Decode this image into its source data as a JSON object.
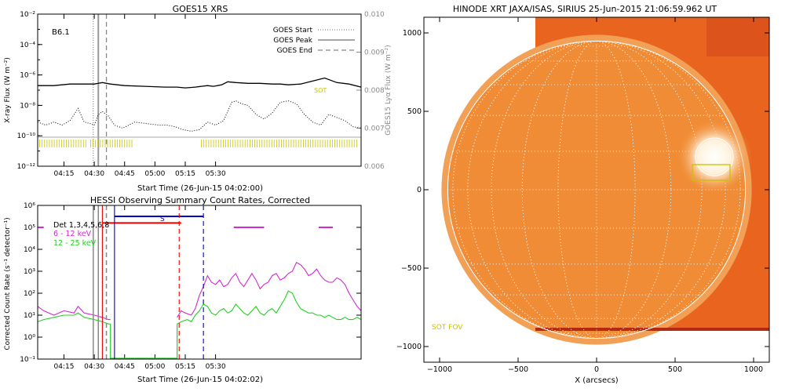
{
  "chart_data": [
    {
      "id": "goes",
      "type": "line",
      "title": "GOES15 XRS",
      "xlabel": "Start Time (26-Jun-15 04:02:00)",
      "ylabel": "X-ray Flux (W m⁻²)",
      "y2label": "GOES15 Lyα Flux (W m⁻²)",
      "xlim_min": [
        242,
        402
      ],
      "x_ticks": [
        {
          "min": 255,
          "label": "04:15"
        },
        {
          "min": 270,
          "label": "04:30"
        },
        {
          "min": 285,
          "label": "04:45"
        },
        {
          "min": 300,
          "label": "05:00"
        },
        {
          "min": 315,
          "label": "05:15"
        },
        {
          "min": 330,
          "label": "05:30"
        }
      ],
      "y_log_range": [
        -12,
        -2
      ],
      "y_ticks": [
        {
          "exp": -2,
          "label": "10⁻²"
        },
        {
          "exp": -4,
          "label": "10⁻⁴"
        },
        {
          "exp": -6,
          "label": "10⁻⁶"
        },
        {
          "exp": -8,
          "label": "10⁻⁸"
        },
        {
          "exp": -10,
          "label": "10⁻¹⁰"
        },
        {
          "exp": -12,
          "label": "10⁻¹²"
        }
      ],
      "y2_range": [
        0.006,
        0.01
      ],
      "y2_ticks": [
        "0.010",
        "0.009",
        "0.008",
        "0.007",
        "0.006"
      ],
      "class_label": "B6.1",
      "legend": [
        {
          "label": "GOES Start",
          "style": "dotted"
        },
        {
          "label": "GOES Peak",
          "style": "solid"
        },
        {
          "label": "GOES End",
          "style": "dashed"
        }
      ],
      "markers_min": {
        "start": 269.5,
        "peak": 272,
        "end": 276
      },
      "sot_label": "SOT",
      "series": [
        {
          "style": "solid",
          "x": [
            242,
            250,
            258,
            265,
            270,
            274,
            278,
            285,
            295,
            305,
            311,
            315,
            320,
            323,
            326,
            329,
            333,
            336,
            340,
            346,
            352,
            358,
            362,
            366,
            372,
            378,
            384,
            390,
            396,
            402
          ],
          "log_y": [
            -6.7,
            -6.7,
            -6.6,
            -6.6,
            -6.6,
            -6.5,
            -6.6,
            -6.7,
            -6.75,
            -6.8,
            -6.8,
            -6.85,
            -6.8,
            -6.75,
            -6.7,
            -6.75,
            -6.65,
            -6.45,
            -6.5,
            -6.55,
            -6.55,
            -6.6,
            -6.6,
            -6.65,
            -6.6,
            -6.4,
            -6.2,
            -6.5,
            -6.6,
            -6.8
          ]
        },
        {
          "style": "dotted",
          "x": [
            242,
            246,
            250,
            254,
            258,
            262,
            265,
            268,
            270,
            272,
            274,
            277,
            280,
            284,
            290,
            296,
            302,
            306,
            310,
            314,
            318,
            322,
            326,
            330,
            334,
            338,
            340,
            343,
            346,
            350,
            354,
            358,
            362,
            366,
            370,
            374,
            378,
            382,
            386,
            390,
            394,
            398,
            402
          ],
          "log_y": [
            -9.1,
            -9.3,
            -9.1,
            -9.3,
            -9.0,
            -8.2,
            -9.1,
            -9.2,
            -9.3,
            -8.6,
            -8.4,
            -8.7,
            -9.3,
            -9.5,
            -9.1,
            -9.2,
            -9.3,
            -9.3,
            -9.4,
            -9.6,
            -9.7,
            -9.6,
            -9.1,
            -9.3,
            -9.0,
            -7.8,
            -7.7,
            -7.9,
            -8.0,
            -8.6,
            -8.9,
            -8.5,
            -7.8,
            -7.7,
            -7.9,
            -8.6,
            -9.1,
            -9.3,
            -8.6,
            -8.8,
            -9.0,
            -9.4,
            -9.5
          ]
        }
      ],
      "lyman_level": 0.0067
    },
    {
      "id": "hessi",
      "type": "line",
      "title": "HESSI Observing Summary Count Rates, Corrected",
      "xlabel": "Start Time (26-Jun-15 04:02:02)",
      "ylabel": "Corrected Count Rate (s⁻¹ detector⁻¹)",
      "xlim_min": [
        242,
        402
      ],
      "x_ticks": [
        {
          "min": 255,
          "label": "04:15"
        },
        {
          "min": 270,
          "label": "04:30"
        },
        {
          "min": 285,
          "label": "04:45"
        },
        {
          "min": 300,
          "label": "05:00"
        },
        {
          "min": 315,
          "label": "05:15"
        },
        {
          "min": 330,
          "label": "05:30"
        }
      ],
      "y_log_range": [
        -1,
        6
      ],
      "y_ticks": [
        {
          "exp": 6,
          "label": "10⁶"
        },
        {
          "exp": 5,
          "label": "10⁵"
        },
        {
          "exp": 4,
          "label": "10⁴"
        },
        {
          "exp": 3,
          "label": "10³"
        },
        {
          "exp": 2,
          "label": "10²"
        },
        {
          "exp": 1,
          "label": "10¹"
        },
        {
          "exp": 0,
          "label": "10⁰"
        },
        {
          "exp": -1,
          "label": "10⁻¹"
        }
      ],
      "detector_label": "Det 1,3,4,5,6,8",
      "series": [
        {
          "name": "6 - 12 keV",
          "color": "#d02ad0",
          "x": [
            242,
            245,
            250,
            255,
            260,
            262,
            263,
            265,
            270,
            274,
            277,
            278,
            311,
            313,
            315,
            318,
            320,
            322,
            324,
            326,
            328,
            330,
            332,
            334,
            336,
            338,
            340,
            342,
            344,
            346,
            348,
            350,
            352,
            354,
            356,
            358,
            360,
            362,
            364,
            366,
            368,
            370,
            372,
            374,
            376,
            378,
            380,
            382,
            384,
            386,
            388,
            390,
            392,
            394,
            396,
            398,
            400,
            402
          ],
          "log_y": [
            1.4,
            1.2,
            1.0,
            1.2,
            1.1,
            1.4,
            1.3,
            1.1,
            1.0,
            0.9,
            0.8,
            0.8,
            0.9,
            1.2,
            1.1,
            1.0,
            1.3,
            1.9,
            2.3,
            2.8,
            2.5,
            2.4,
            2.6,
            2.3,
            2.4,
            2.7,
            2.9,
            2.5,
            2.3,
            2.6,
            2.9,
            2.6,
            2.2,
            2.4,
            2.5,
            2.8,
            2.9,
            2.6,
            2.7,
            2.9,
            3.0,
            3.4,
            3.3,
            3.1,
            2.8,
            2.9,
            3.1,
            2.8,
            2.6,
            2.5,
            2.5,
            2.7,
            2.6,
            2.4,
            2.0,
            1.7,
            1.4,
            1.2
          ]
        },
        {
          "name": "12 - 25 keV",
          "color": "#22d022",
          "x": [
            242,
            245,
            250,
            255,
            260,
            262,
            265,
            270,
            274,
            277,
            278,
            311,
            313,
            316,
            318,
            320,
            322,
            324,
            326,
            328,
            330,
            332,
            334,
            336,
            338,
            340,
            342,
            344,
            346,
            348,
            350,
            352,
            354,
            356,
            358,
            360,
            362,
            364,
            366,
            368,
            370,
            372,
            374,
            376,
            378,
            380,
            382,
            384,
            386,
            388,
            390,
            392,
            394,
            396,
            398,
            400,
            402
          ],
          "log_y": [
            0.7,
            0.8,
            0.9,
            1.0,
            1.0,
            1.1,
            0.9,
            0.8,
            0.7,
            0.6,
            0.6,
            0.6,
            0.7,
            0.8,
            0.7,
            1.0,
            1.2,
            1.5,
            1.4,
            1.1,
            1.0,
            1.2,
            1.3,
            1.1,
            1.2,
            1.5,
            1.3,
            1.1,
            1.0,
            1.2,
            1.4,
            1.1,
            1.0,
            1.2,
            1.3,
            1.1,
            1.4,
            1.7,
            2.1,
            2.0,
            1.6,
            1.3,
            1.2,
            1.1,
            1.1,
            1.0,
            1.0,
            0.9,
            1.0,
            0.9,
            0.8,
            0.8,
            0.9,
            0.8,
            0.8,
            0.9,
            0.8
          ]
        }
      ],
      "flag_bars": [
        {
          "color": "#d02ad0",
          "log_y": 5.0,
          "segments": [
            [
              242,
              245
            ],
            [
              339,
              354
            ],
            [
              381,
              388
            ]
          ]
        },
        {
          "color": "#ee0000",
          "log_y": 5.2,
          "segments": [
            [
              274,
              313
            ]
          ]
        },
        {
          "color": "#0000cc",
          "log_y": 5.5,
          "segments": [
            [
              280,
              324
            ]
          ]
        }
      ],
      "flag_letter": "S",
      "vlines_min": [
        {
          "min": 274,
          "color": "#ee0000",
          "style": "solid"
        },
        {
          "min": 312,
          "color": "#ee0000",
          "style": "dashed"
        },
        {
          "min": 280,
          "color": "#0000cc",
          "style": "solid"
        },
        {
          "min": 324,
          "color": "#0000cc",
          "style": "dashed"
        },
        {
          "min": 269.5,
          "color": "#888888",
          "style": "solid"
        },
        {
          "min": 272,
          "color": "#888888",
          "style": "solid"
        },
        {
          "min": 276,
          "color": "#888888",
          "style": "dashed"
        }
      ]
    },
    {
      "id": "xrt",
      "type": "image",
      "title": "HINODE XRT JAXA/ISAS, SIRIUS 25-Jun-2015 21:06:59.962 UT",
      "xlabel": "X (arcsecs)",
      "xlim": [
        -1100,
        1100
      ],
      "ylim": [
        -1100,
        1100
      ],
      "x_ticks": [
        -1000,
        -500,
        0,
        500,
        1000
      ],
      "y_ticks": [
        1000,
        500,
        0,
        -500,
        -1000
      ],
      "tick_labels_x": [
        "−1000",
        "−500",
        "0",
        "500",
        "1000"
      ],
      "tick_labels_y": [
        "1000",
        "500",
        "0",
        "−500",
        "−1000"
      ],
      "image_extent": {
        "x0": -390,
        "x1": 1100,
        "y0": -900,
        "y1": 1100
      },
      "disk_radius": 948,
      "active_region": {
        "x": 750,
        "y": 210,
        "r": 120
      },
      "sot_box": {
        "x0": 610,
        "x1": 850,
        "y0": 60,
        "y1": 160
      },
      "sot_fov_label": "SOT FOV",
      "colors": {
        "disk": "#f08c35",
        "offdisk": "#e9651f",
        "bright": "#fff6e8",
        "sot": "#c9c300"
      }
    }
  ]
}
